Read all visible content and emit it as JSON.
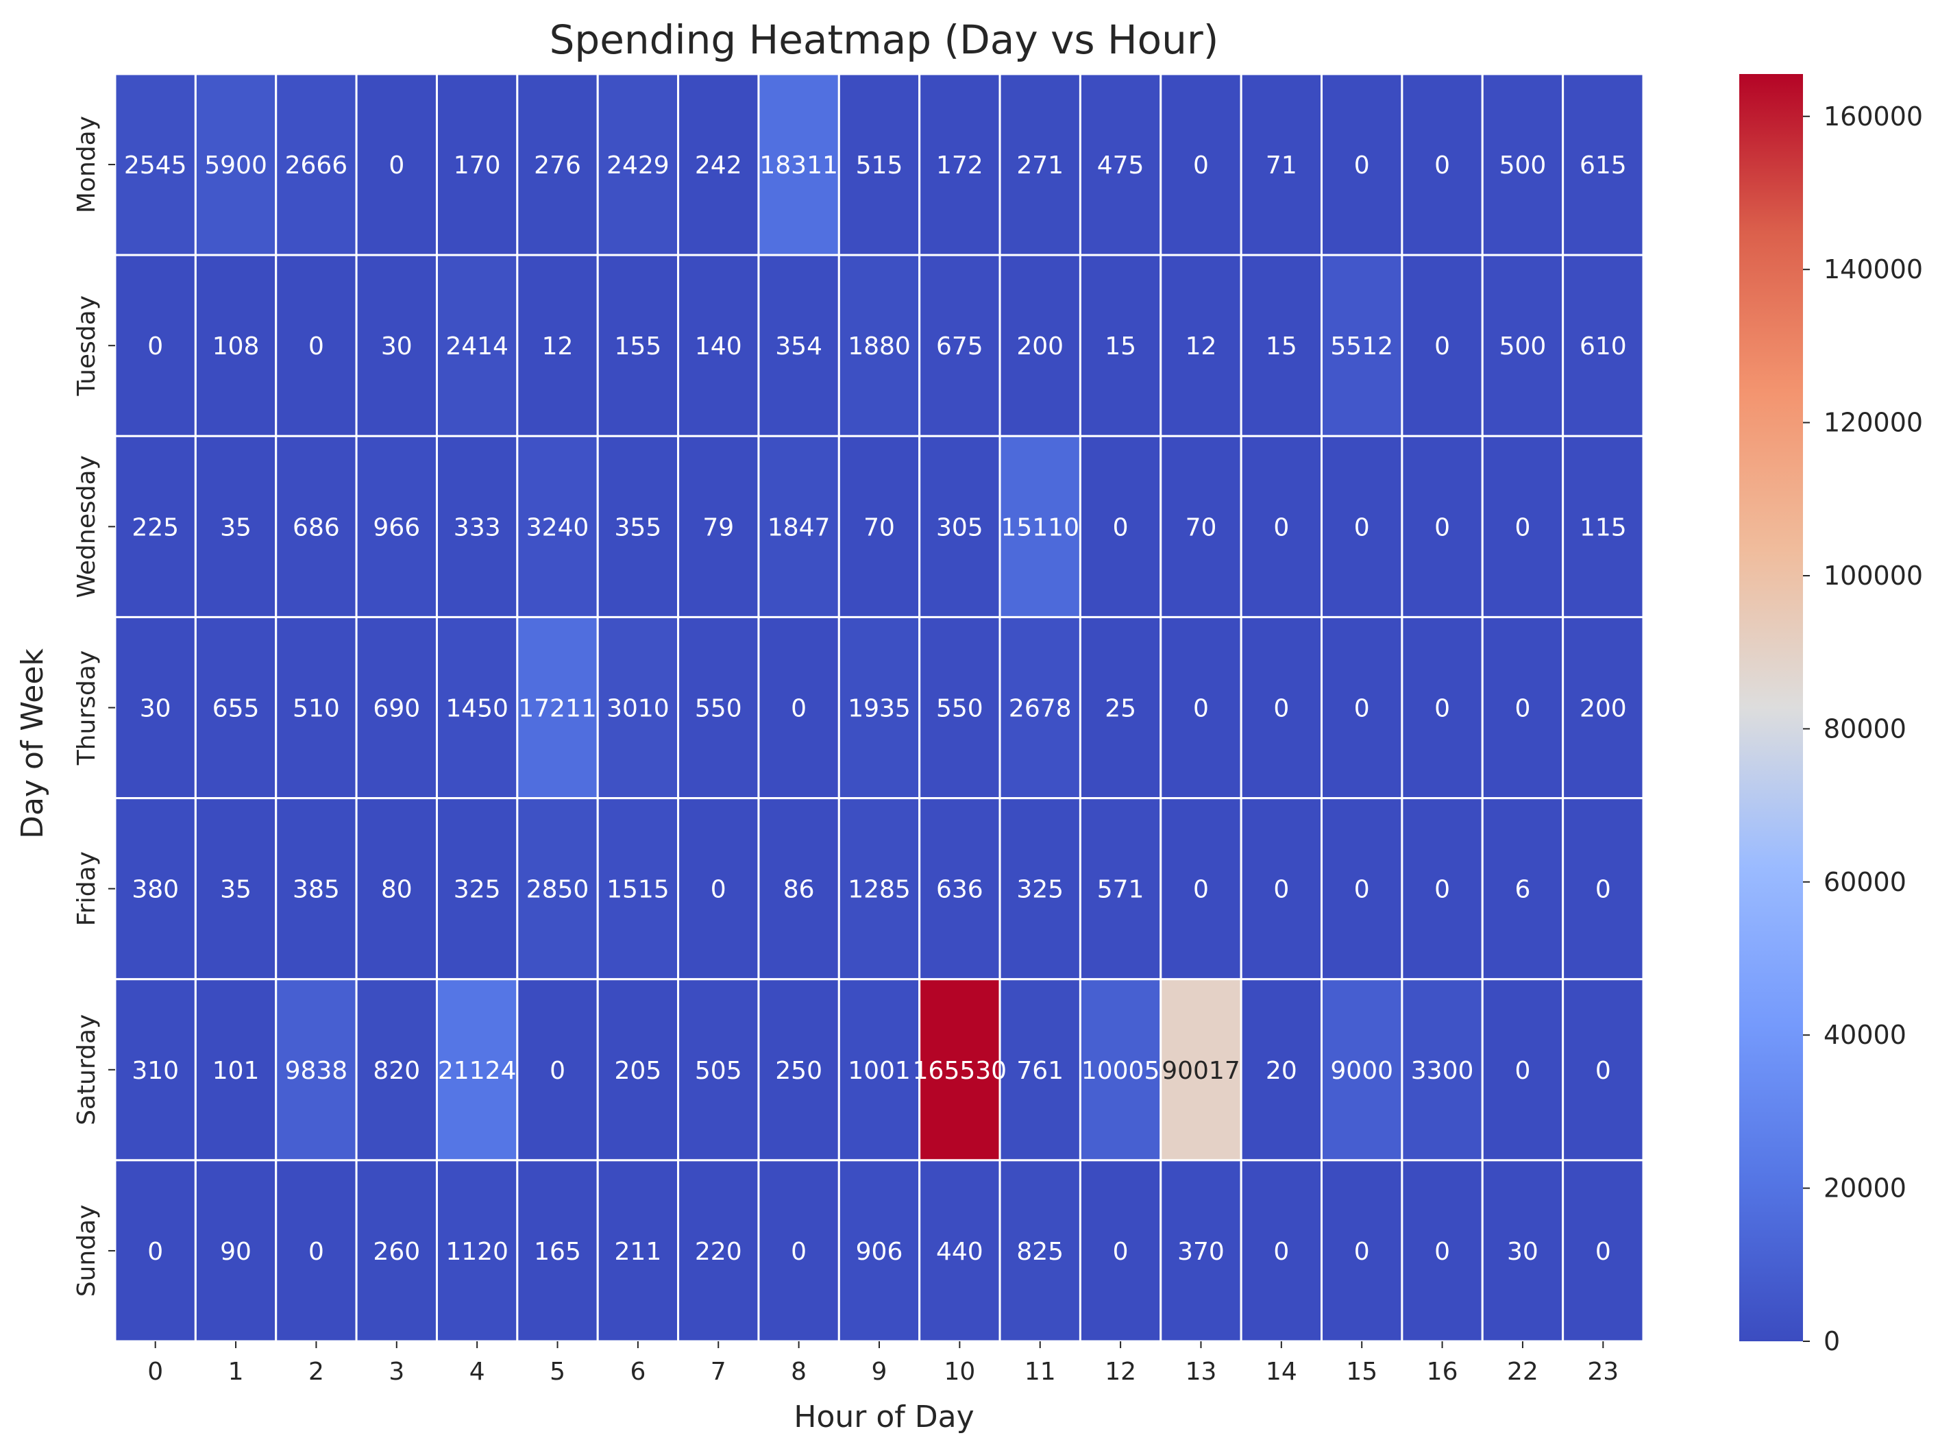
{
  "chart_data": {
    "type": "heatmap",
    "title": "Spending Heatmap (Day vs Hour)",
    "xlabel": "Hour of Day",
    "ylabel": "Day of Week",
    "x_categories": [
      "0",
      "1",
      "2",
      "3",
      "4",
      "5",
      "6",
      "7",
      "8",
      "9",
      "10",
      "11",
      "12",
      "13",
      "14",
      "15",
      "16",
      "22",
      "23"
    ],
    "y_categories": [
      "Monday",
      "Tuesday",
      "Wednesday",
      "Thursday",
      "Friday",
      "Saturday",
      "Sunday"
    ],
    "values": [
      [
        2545,
        5900,
        2666,
        0,
        170,
        276,
        2429,
        242,
        18311,
        515,
        172,
        271,
        475,
        0,
        71,
        0,
        0,
        500,
        615
      ],
      [
        0,
        108,
        0,
        30,
        2414,
        12,
        155,
        140,
        354,
        1880,
        675,
        200,
        15,
        12,
        15,
        5512,
        0,
        500,
        610
      ],
      [
        225,
        35,
        686,
        966,
        333,
        3240,
        355,
        79,
        1847,
        70,
        305,
        15110,
        0,
        70,
        0,
        0,
        0,
        0,
        115
      ],
      [
        30,
        655,
        510,
        690,
        1450,
        17211,
        3010,
        550,
        0,
        1935,
        550,
        2678,
        25,
        0,
        0,
        0,
        0,
        0,
        200
      ],
      [
        380,
        35,
        385,
        80,
        325,
        2850,
        1515,
        0,
        86,
        1285,
        636,
        325,
        571,
        0,
        0,
        0,
        0,
        6,
        0
      ],
      [
        310,
        101,
        9838,
        820,
        21124,
        0,
        205,
        505,
        250,
        1001,
        165530,
        761,
        10005,
        90017,
        20,
        9000,
        3300,
        0,
        0
      ],
      [
        0,
        90,
        0,
        260,
        1120,
        165,
        211,
        220,
        0,
        906,
        440,
        825,
        0,
        370,
        0,
        0,
        0,
        30,
        0
      ]
    ],
    "value_range": [
      0,
      165530
    ],
    "colormap": "coolwarm",
    "colorbar_ticks": [
      0,
      20000,
      40000,
      60000,
      80000,
      100000,
      120000,
      140000,
      160000
    ],
    "grid": "white cell borders",
    "colors": {
      "low": "#3b4cc0",
      "mid": "#dddddd",
      "high": "#b40426",
      "cell_border": "#ffffff",
      "text_light": "#ffffff",
      "text_dark": "#262626"
    }
  }
}
